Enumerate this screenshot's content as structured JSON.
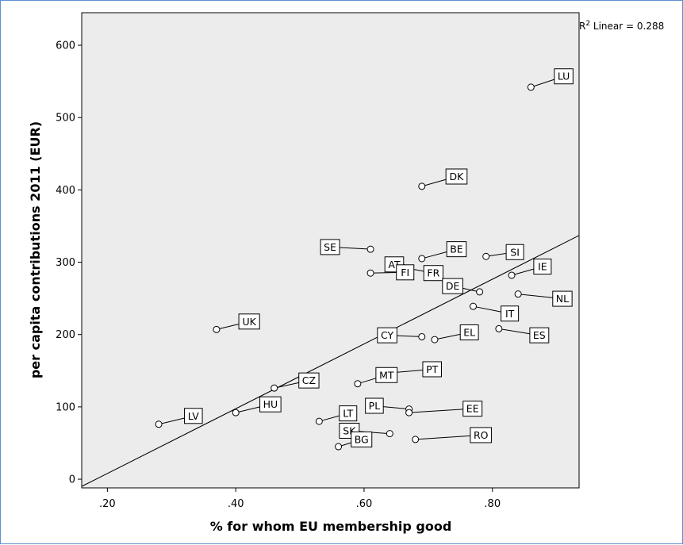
{
  "chart_data": {
    "type": "scatter",
    "title": "",
    "xlabel": "% for whom EU membership good",
    "ylabel": "per capita contributions 2011 (EUR)",
    "xlim": [
      0.16,
      0.935
    ],
    "ylim": [
      -12,
      645
    ],
    "x_ticks": [
      {
        "value": 0.2,
        "label": ".20"
      },
      {
        "value": 0.4,
        "label": ".40"
      },
      {
        "value": 0.6,
        "label": ".60"
      },
      {
        "value": 0.8,
        "label": ".80"
      }
    ],
    "y_ticks": [
      {
        "value": 0,
        "label": "0"
      },
      {
        "value": 100,
        "label": "100"
      },
      {
        "value": 200,
        "label": "200"
      },
      {
        "value": 300,
        "label": "300"
      },
      {
        "value": 400,
        "label": "400"
      },
      {
        "value": 500,
        "label": "500"
      },
      {
        "value": 600,
        "label": "600"
      }
    ],
    "grid": false,
    "fit_line": {
      "type": "linear",
      "from": [
        0.16,
        -10
      ],
      "to": [
        0.935,
        337
      ]
    },
    "annotation": {
      "r2_label": "R",
      "r2_sup": "2",
      "r2_text": " Linear = 0.288"
    },
    "points": [
      {
        "label": "LU",
        "x": 0.86,
        "y": 542,
        "dx": 1.7,
        "dy": -30
      },
      {
        "label": "DK",
        "x": 0.69,
        "y": 405,
        "dx": 1.8,
        "dy": -27
      },
      {
        "label": "BE",
        "x": 0.69,
        "y": 305,
        "dx": 1.8,
        "dy": -26
      },
      {
        "label": "SE",
        "x": 0.61,
        "y": 318,
        "dx": -2.1,
        "dy": -6
      },
      {
        "label": "AT",
        "x": 0.65,
        "y": 298,
        "dx": -0.1,
        "dy": 2
      },
      {
        "label": "FI",
        "x": 0.61,
        "y": 285,
        "dx": 1.8,
        "dy": -2
      },
      {
        "label": "FR",
        "x": 0.66,
        "y": 293,
        "dx": 1.6,
        "dy": 16
      },
      {
        "label": "SI",
        "x": 0.79,
        "y": 308,
        "dx": 1.5,
        "dy": -12
      },
      {
        "label": "IE",
        "x": 0.83,
        "y": 282,
        "dx": 1.6,
        "dy": -24
      },
      {
        "label": "DE",
        "x": 0.78,
        "y": 259,
        "dx": -1.4,
        "dy": -16
      },
      {
        "label": "NL",
        "x": 0.84,
        "y": 256,
        "dx": 2.3,
        "dy": 13
      },
      {
        "label": "IT",
        "x": 0.77,
        "y": 239,
        "dx": 1.9,
        "dy": 20
      },
      {
        "label": "ES",
        "x": 0.81,
        "y": 208,
        "dx": 2.1,
        "dy": 18
      },
      {
        "label": "UK",
        "x": 0.37,
        "y": 207,
        "dx": 1.7,
        "dy": -22
      },
      {
        "label": "CY",
        "x": 0.69,
        "y": 197,
        "dx": -1.8,
        "dy": -4
      },
      {
        "label": "EL",
        "x": 0.71,
        "y": 193,
        "dx": 1.8,
        "dy": -20
      },
      {
        "label": "CZ",
        "x": 0.46,
        "y": 126,
        "dx": 1.8,
        "dy": -21
      },
      {
        "label": "MT",
        "x": 0.59,
        "y": 132,
        "dx": 1.5,
        "dy": -24
      },
      {
        "label": "PT",
        "x": 0.64,
        "y": 147,
        "dx": 2.2,
        "dy": -10
      },
      {
        "label": "HU",
        "x": 0.4,
        "y": 92,
        "dx": 1.8,
        "dy": -23
      },
      {
        "label": "LV",
        "x": 0.28,
        "y": 76,
        "dx": 1.8,
        "dy": -23
      },
      {
        "label": "LT",
        "x": 0.53,
        "y": 80,
        "dx": 1.5,
        "dy": -22
      },
      {
        "label": "PL",
        "x": 0.67,
        "y": 97,
        "dx": -1.8,
        "dy": -9
      },
      {
        "label": "EE",
        "x": 0.67,
        "y": 92,
        "dx": 3.3,
        "dy": -11
      },
      {
        "label": "SK",
        "x": 0.64,
        "y": 63,
        "dx": -2.1,
        "dy": -8
      },
      {
        "label": "BG",
        "x": 0.56,
        "y": 45,
        "dx": 1.2,
        "dy": -20
      },
      {
        "label": "RO",
        "x": 0.68,
        "y": 55,
        "dx": 3.4,
        "dy": -12
      }
    ]
  }
}
